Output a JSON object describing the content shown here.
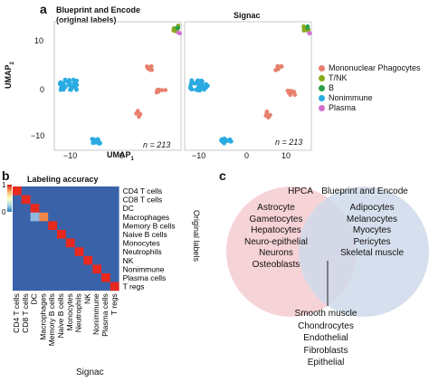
{
  "panels": {
    "a": {
      "letter": "a",
      "plots": [
        {
          "title": "Blueprint and Encode (original labels)",
          "n_label": "n = 213"
        },
        {
          "title": "Signac",
          "n_label": "n = 213"
        }
      ],
      "ylabel": "UMAP",
      "ylabel_sub": "2",
      "xlabel": "UMAP",
      "xlabel_sub": "1",
      "y_ticks": [
        "10",
        "0",
        "−10"
      ],
      "x_ticks_left": [
        "−10",
        "0"
      ],
      "x_ticks_right": [
        "−10",
        "0",
        "10"
      ],
      "legend": [
        {
          "label": "Mononuclear Phagocytes",
          "color": "#e8806f"
        },
        {
          "label": "T/NK",
          "color": "#8bab1f"
        },
        {
          "label": "B",
          "color": "#2aa14a"
        },
        {
          "label": "Nonimmune",
          "color": "#2aabe2"
        },
        {
          "label": "Plasma",
          "color": "#d36fd1"
        }
      ]
    },
    "b": {
      "letter": "b",
      "title": "Labeling accuracy",
      "colorbar_ticks": [
        "1",
        "0"
      ],
      "colorbar_colors": [
        "#d7191c",
        "#fdae61",
        "#ffffbf",
        "#abd9e9",
        "#2c7bb6"
      ],
      "rows": [
        "CD4 T cells",
        "CD8 T cells",
        "DC",
        "Macrophages",
        "Memory B cells",
        "Naive B cells",
        "Monocytes",
        "Neutrophils",
        "NK",
        "Nonimmune",
        "Plasma cells",
        "T regs"
      ],
      "cols": [
        "CD4 T cells",
        "CD8 T cells",
        "DC",
        "Macrophages",
        "Memory B cells",
        "Naive B cells",
        "Monocytes",
        "Neutrophils",
        "NK",
        "Nonimmune",
        "Plasma cells",
        "T regs"
      ],
      "y_axis_label": "Original labels",
      "x_axis_label": "Signac",
      "colors": {
        "low": "#3a62a8",
        "high": "#e8291f",
        "mid_light": "#8fb8e0",
        "mid_orange": "#f0864a"
      }
    },
    "c": {
      "letter": "c",
      "left_title": "HPCA",
      "right_title": "Blueprint and Encode",
      "left_items": [
        "Astrocyte",
        "Gametocytes",
        "Hepatocytes",
        "Neuro-epithelial",
        "Neurons",
        "Osteoblasts"
      ],
      "right_items": [
        "Adipocytes",
        "Melanocytes",
        "Myocytes",
        "Pericytes",
        "Skeletal muscle"
      ],
      "shared_items": [
        "Smooth muscle",
        "Chondrocytes",
        "Endothelial",
        "Fibroblasts",
        "Epithelial"
      ],
      "left_color": "#f4cbd0",
      "right_color": "#cfd9ea"
    }
  }
}
